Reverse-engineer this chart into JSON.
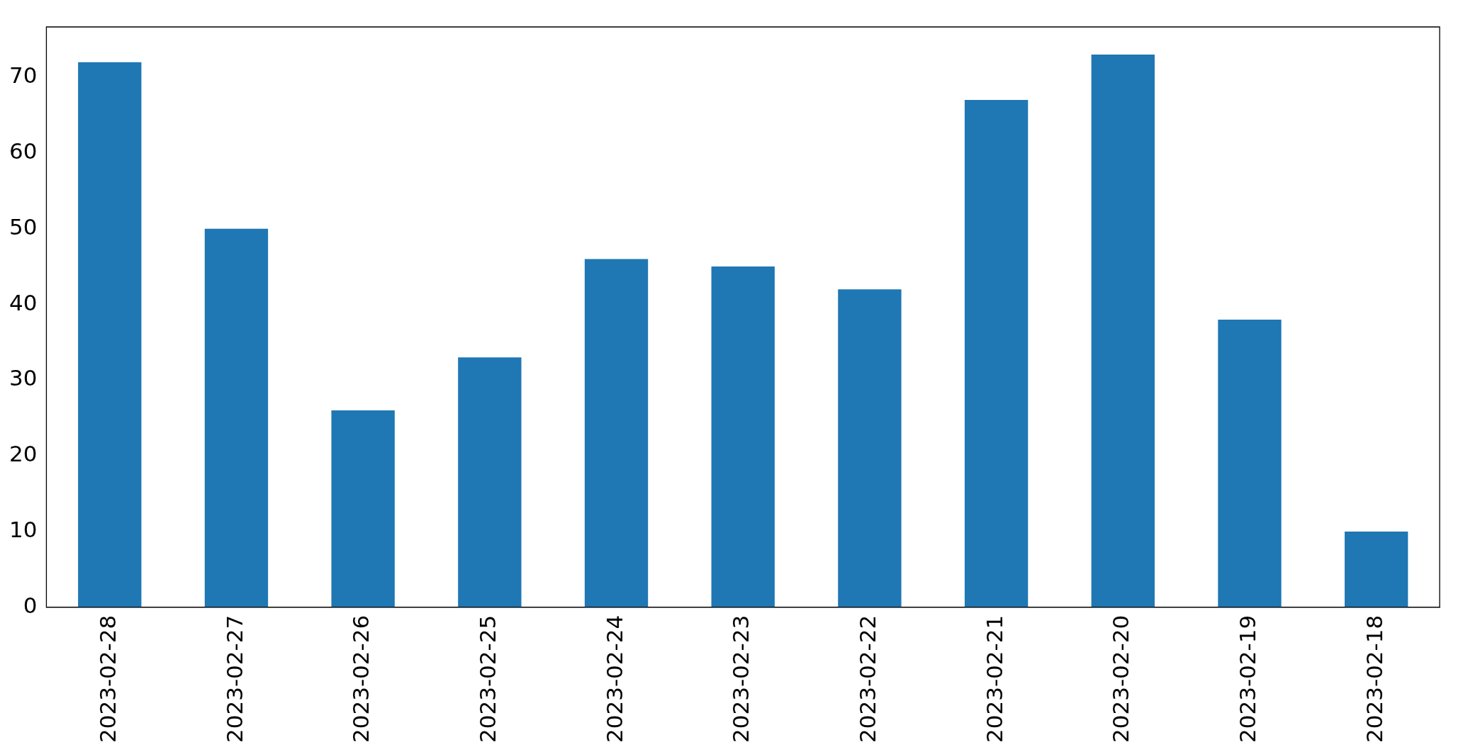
{
  "chart_data": {
    "type": "bar",
    "categories": [
      "2023-02-28",
      "2023-02-27",
      "2023-02-26",
      "2023-02-25",
      "2023-02-24",
      "2023-02-23",
      "2023-02-22",
      "2023-02-21",
      "2023-02-20",
      "2023-02-19",
      "2023-02-18"
    ],
    "values": [
      72,
      50,
      26,
      33,
      46,
      45,
      42,
      67,
      73,
      38,
      10
    ],
    "color": "#1f77b4",
    "ylim": [
      0,
      76.65
    ],
    "yticks": [
      0,
      10,
      20,
      30,
      40,
      50,
      60,
      70
    ],
    "grid": false,
    "legend": false
  }
}
